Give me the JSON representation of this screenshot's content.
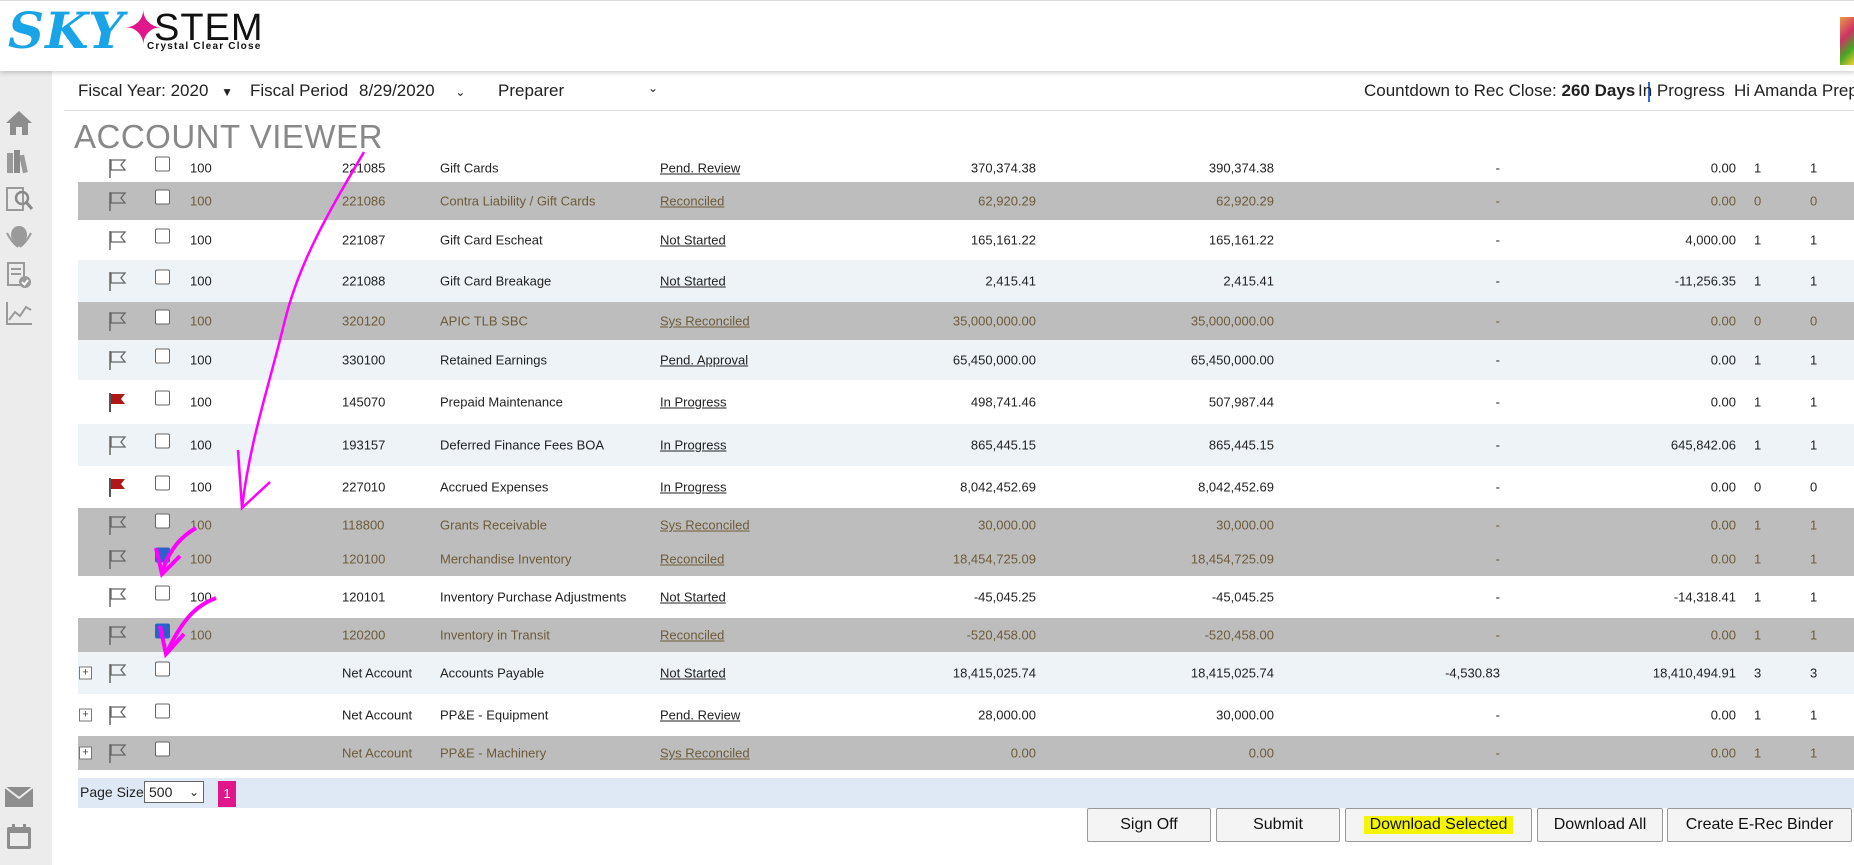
{
  "brand": {
    "logo_word_left": "SKY",
    "logo_word_right": "STEM",
    "tagline": "Crystal Clear Close"
  },
  "filters": {
    "fiscal_year_label": "Fiscal Year: 2020",
    "fiscal_period_label": "Fiscal Period",
    "fiscal_period_value": "8/29/2020",
    "role_value": "Preparer",
    "countdown_label": "Countdown to Rec Close:",
    "countdown_value": "260 Days",
    "status_text": "In Progress",
    "greeting": "Hi Amanda Prep"
  },
  "page": {
    "title": "ACCOUNT VIEWER"
  },
  "sidebar_icons": [
    "home-icon",
    "books-icon",
    "search-report-icon",
    "badge-icon",
    "checklist-icon",
    "chart-icon",
    "mail-icon",
    "calendar-icon"
  ],
  "table": {
    "rows": [
      {
        "flag": "outline",
        "checked": false,
        "expand": false,
        "entity": "100",
        "account": "221085",
        "name": "Gift Cards",
        "status": "Pend. Review",
        "c1": "370,374.38",
        "c2": "390,374.38",
        "c3": "-",
        "c4": "0.00",
        "n1": "1",
        "n2": "1",
        "style": "white"
      },
      {
        "flag": "outline",
        "checked": false,
        "expand": false,
        "entity": "100",
        "account": "221086",
        "name": "Contra Liability / Gift Cards",
        "status": "Reconciled",
        "c1": "62,920.29",
        "c2": "62,920.29",
        "c3": "-",
        "c4": "0.00",
        "n1": "0",
        "n2": "0",
        "style": "gray"
      },
      {
        "flag": "outline",
        "checked": false,
        "expand": false,
        "entity": "100",
        "account": "221087",
        "name": "Gift Card Escheat",
        "status": "Not Started",
        "c1": "165,161.22",
        "c2": "165,161.22",
        "c3": "-",
        "c4": "4,000.00",
        "n1": "1",
        "n2": "1",
        "style": "white"
      },
      {
        "flag": "outline",
        "checked": false,
        "expand": false,
        "entity": "100",
        "account": "221088",
        "name": "Gift Card Breakage",
        "status": "Not Started",
        "c1": "2,415.41",
        "c2": "2,415.41",
        "c3": "-",
        "c4": "-11,256.35",
        "n1": "1",
        "n2": "1",
        "style": "light"
      },
      {
        "flag": "outline",
        "checked": false,
        "expand": false,
        "entity": "100",
        "account": "320120",
        "name": "APIC TLB SBC",
        "status": "Sys Reconciled",
        "c1": "35,000,000.00",
        "c2": "35,000,000.00",
        "c3": "-",
        "c4": "0.00",
        "n1": "0",
        "n2": "0",
        "style": "gray"
      },
      {
        "flag": "outline",
        "checked": false,
        "expand": false,
        "entity": "100",
        "account": "330100",
        "name": "Retained Earnings",
        "status": "Pend. Approval",
        "c1": "65,450,000.00",
        "c2": "65,450,000.00",
        "c3": "-",
        "c4": "0.00",
        "n1": "1",
        "n2": "1",
        "style": "light"
      },
      {
        "flag": "red",
        "checked": false,
        "expand": false,
        "entity": "100",
        "account": "145070",
        "name": "Prepaid Maintenance",
        "status": "In Progress",
        "c1": "498,741.46",
        "c2": "507,987.44",
        "c3": "-",
        "c4": "0.00",
        "n1": "1",
        "n2": "1",
        "style": "white"
      },
      {
        "flag": "outline",
        "checked": false,
        "expand": false,
        "entity": "100",
        "account": "193157",
        "name": "Deferred Finance Fees BOA",
        "status": "In Progress",
        "c1": "865,445.15",
        "c2": "865,445.15",
        "c3": "-",
        "c4": "645,842.06",
        "n1": "1",
        "n2": "1",
        "style": "light"
      },
      {
        "flag": "red",
        "checked": false,
        "expand": false,
        "entity": "100",
        "account": "227010",
        "name": "Accrued Expenses",
        "status": "In Progress",
        "c1": "8,042,452.69",
        "c2": "8,042,452.69",
        "c3": "-",
        "c4": "0.00",
        "n1": "0",
        "n2": "0",
        "style": "white"
      },
      {
        "flag": "outline",
        "checked": false,
        "expand": false,
        "entity": "100",
        "account": "118800",
        "name": "Grants Receivable",
        "status": "Sys Reconciled",
        "c1": "30,000.00",
        "c2": "30,000.00",
        "c3": "-",
        "c4": "0.00",
        "n1": "1",
        "n2": "1",
        "style": "gray"
      },
      {
        "flag": "outline",
        "checked": true,
        "expand": false,
        "entity": "100",
        "account": "120100",
        "name": "Merchandise Inventory",
        "status": "Reconciled",
        "c1": "18,454,725.09",
        "c2": "18,454,725.09",
        "c3": "-",
        "c4": "0.00",
        "n1": "1",
        "n2": "1",
        "style": "gray"
      },
      {
        "flag": "outline",
        "checked": false,
        "expand": false,
        "entity": "100",
        "account": "120101",
        "name": "Inventory Purchase Adjustments",
        "status": "Not Started",
        "c1": "-45,045.25",
        "c2": "-45,045.25",
        "c3": "-",
        "c4": "-14,318.41",
        "n1": "1",
        "n2": "1",
        "style": "white"
      },
      {
        "flag": "outline",
        "checked": true,
        "expand": false,
        "entity": "100",
        "account": "120200",
        "name": "Inventory in Transit",
        "status": "Reconciled",
        "c1": "-520,458.00",
        "c2": "-520,458.00",
        "c3": "-",
        "c4": "0.00",
        "n1": "1",
        "n2": "1",
        "style": "gray"
      },
      {
        "flag": "outline",
        "checked": false,
        "expand": true,
        "entity": "",
        "account": "Net Account",
        "name": "Accounts Payable",
        "status": "Not Started",
        "c1": "18,415,025.74",
        "c2": "18,415,025.74",
        "c3": "-4,530.83",
        "c4": "18,410,494.91",
        "n1": "3",
        "n2": "3",
        "style": "light"
      },
      {
        "flag": "outline",
        "checked": false,
        "expand": true,
        "entity": "",
        "account": "Net Account",
        "name": "PP&E - Equipment",
        "status": "Pend. Review",
        "c1": "28,000.00",
        "c2": "30,000.00",
        "c3": "-",
        "c4": "0.00",
        "n1": "1",
        "n2": "1",
        "style": "white"
      },
      {
        "flag": "outline",
        "checked": false,
        "expand": true,
        "entity": "",
        "account": "Net Account",
        "name": "PP&E - Machinery",
        "status": "Sys Reconciled",
        "c1": "0.00",
        "c2": "0.00",
        "c3": "-",
        "c4": "0.00",
        "n1": "1",
        "n2": "1",
        "style": "gray"
      }
    ]
  },
  "pager": {
    "label": "Page Size:",
    "size": "500",
    "current_page": "1"
  },
  "actions": {
    "sign_off": "Sign Off",
    "submit": "Submit",
    "download_selected": "Download Selected",
    "download_all": "Download All",
    "create_binder": "Create E-Rec Binder"
  },
  "colors": {
    "accent": "#e0168a",
    "brand_blue": "#1aa4e8",
    "annotation": "#ff00ff",
    "highlight": "#f5f500",
    "flag_red": "#b01818"
  }
}
